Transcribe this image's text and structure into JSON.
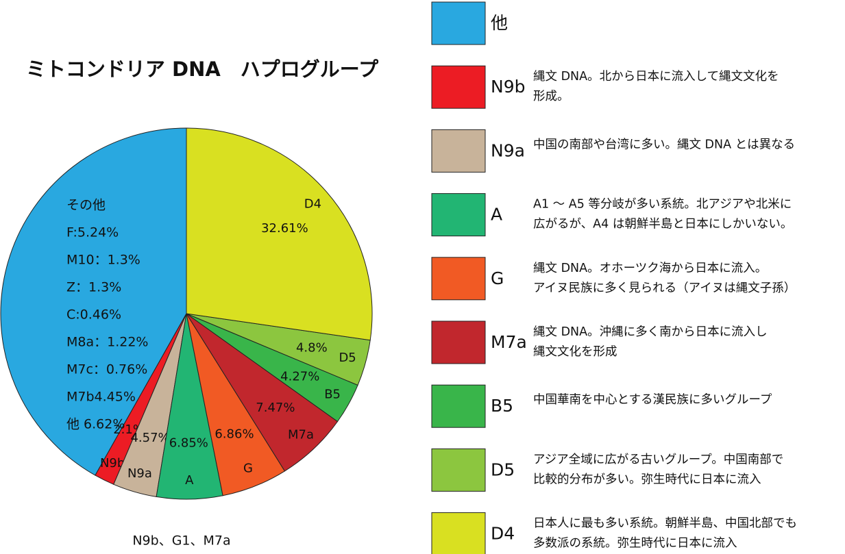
{
  "chart_data": {
    "type": "pie",
    "title": "ミトコンドリア DNA　ハプログループ",
    "categories": [
      "他",
      "N9b",
      "N9a",
      "A",
      "G",
      "M7a",
      "B5",
      "D5",
      "D4"
    ],
    "values": [
      50,
      2.1,
      4.57,
      6.85,
      6.86,
      7.47,
      4.27,
      4.8,
      32.61
    ],
    "value_labels": [
      null,
      "2.1%",
      "4.57%",
      "6.85%",
      "6.86%",
      "7.47%",
      "4.27%",
      "4.8%",
      "32.61%"
    ],
    "colors": [
      "#29a8e0",
      "#ec1c24",
      "#c8b39a",
      "#22b573",
      "#f15a24",
      "#c1272d",
      "#39b54a",
      "#8cc63f",
      "#d9e021"
    ],
    "descriptions": [
      [],
      [
        "縄文 DNA。北から日本に流入して縄文文化を",
        "形成。"
      ],
      [
        "中国の南部や台湾に多い。縄文 DNA とは異なる"
      ],
      [
        "A1 ～ A5 等分岐が多い系統。北アジアや北米に",
        "広がるが、A4 は朝鮮半島と日本にしかいない。"
      ],
      [
        "縄文 DNA。オホーツク海から日本に流入。",
        "アイヌ民族に多く見られる（アイヌは縄文子孫）"
      ],
      [
        "縄文 DNA。沖縄に多く南から日本に流入し",
        "縄文文化を形成"
      ],
      [
        "中国華南を中心とする漢民族に多いグループ"
      ],
      [
        "アジア全域に広がる古いグループ。中国南部で",
        "比較的分布が多い。弥生時代に日本に流入"
      ],
      [
        "日本人に最も多い系統。朝鮮半島、中国北部でも",
        "多数派の系統。弥生時代に日本に流入"
      ]
    ],
    "other_breakdown": [
      "その他",
      "F:5.24%",
      "M10：1.3%",
      "Z：1.3%",
      "C:0.46%",
      "M8a：1.22%",
      "M7c：0.76%",
      "M7b4.45%",
      "他 6.62%"
    ],
    "footnote": "N9b、G1、M7a"
  }
}
